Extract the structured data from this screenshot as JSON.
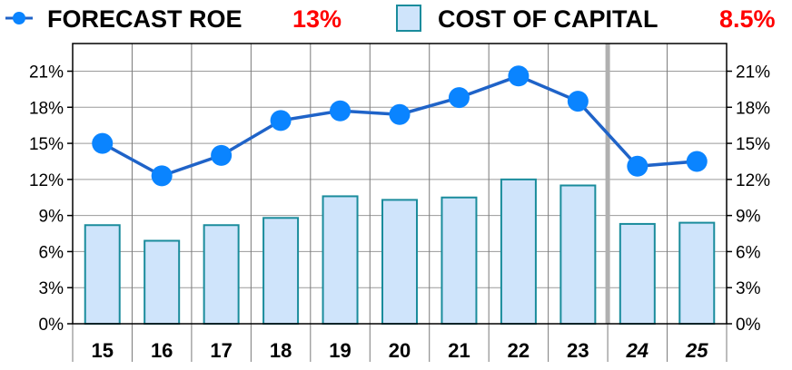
{
  "legend": {
    "roe_label": "FORECAST ROE",
    "roe_value": "13%",
    "coc_label": "COST OF CAPITAL",
    "coc_value": "8.5%"
  },
  "colors": {
    "roe_line": "#1f63c8",
    "roe_marker": "#0a84ff",
    "bar_fill": "#cfe4fb",
    "bar_stroke": "#1a8c9c",
    "forecast_divider": "#b0b0b0",
    "legend_value": "#ff0000"
  },
  "chart_data": {
    "type": "bar",
    "categories": [
      "15",
      "16",
      "17",
      "18",
      "19",
      "20",
      "21",
      "22",
      "23",
      "24",
      "25"
    ],
    "forecast_categories": [
      "24",
      "25"
    ],
    "ylim": [
      0,
      23.3
    ],
    "yticks": [
      0,
      3,
      6,
      9,
      12,
      15,
      18,
      21
    ],
    "ytick_labels": [
      "0%",
      "3%",
      "6%",
      "9%",
      "12%",
      "15%",
      "18%",
      "21%"
    ],
    "grid": true,
    "legend_position": "top",
    "series": [
      {
        "type": "bar",
        "values": [
          8.2,
          6.9,
          8.2,
          8.8,
          10.6,
          10.3,
          10.5,
          12.0,
          11.5,
          8.3,
          8.4
        ]
      },
      {
        "type": "line",
        "values": [
          15.0,
          12.3,
          14.0,
          16.9,
          17.7,
          17.4,
          18.8,
          20.6,
          18.5,
          13.1,
          13.5
        ]
      }
    ]
  }
}
